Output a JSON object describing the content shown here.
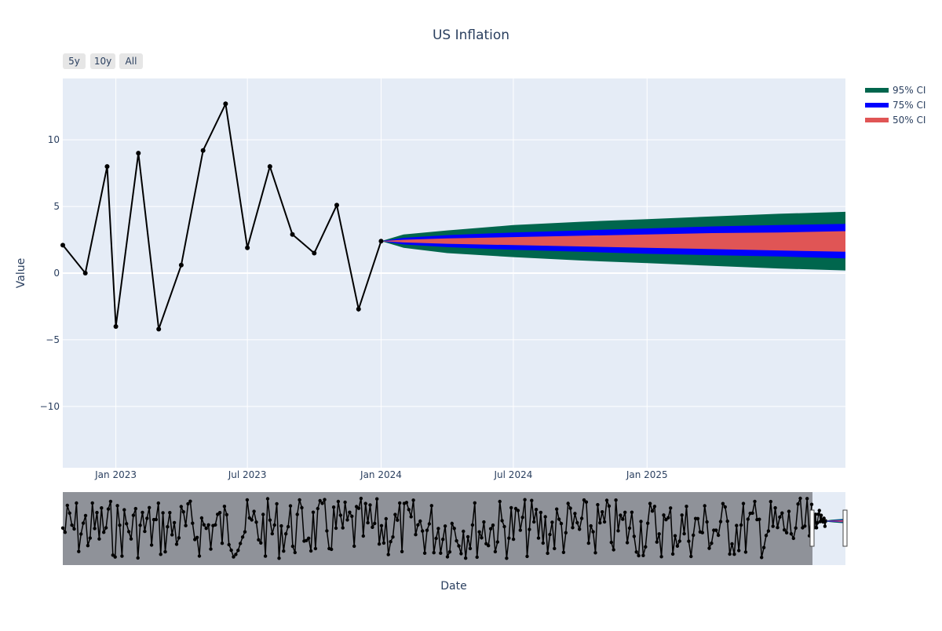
{
  "chart_data": {
    "type": "line",
    "title": "US Inflation",
    "xlabel": "Date",
    "ylabel": "Value",
    "range_selector": [
      "5y",
      "10y",
      "All"
    ],
    "x_ticks": [
      "Jan 2023",
      "Jul 2023",
      "Jan 2024",
      "Jul 2024",
      "Jan 2025"
    ],
    "x_tick_dates": [
      "2023-01-01",
      "2023-07-01",
      "2024-01-01",
      "2024-07-01",
      "2025-01-01"
    ],
    "xlim": [
      "2022-10-20",
      "2025-10-01"
    ],
    "y_ticks": [
      -10,
      -5,
      0,
      5,
      10
    ],
    "y_tick_labels": [
      "−10",
      "−5",
      "0",
      "5",
      "10"
    ],
    "ylim": [
      -14.6,
      14.6
    ],
    "grid": true,
    "legend_position": "top-right",
    "colors": {
      "plot_bg": "#e5ecf6",
      "actual": "#000000",
      "ci95": "#00664d",
      "ci75": "#0000ff",
      "ci50": "#e05555",
      "range_mask": "#8a8d94",
      "text": "#2a3f5f"
    },
    "actual": {
      "dates": [
        "2022-10-20",
        "2022-11-20",
        "2022-12-20",
        "2023-01-01",
        "2023-02-01",
        "2023-03-01",
        "2023-04-01",
        "2023-05-01",
        "2023-06-01",
        "2023-07-01",
        "2023-08-01",
        "2023-09-01",
        "2023-10-01",
        "2023-11-01",
        "2023-12-01",
        "2024-01-01"
      ],
      "values": [
        2.1,
        0.0,
        8.0,
        -4.0,
        9.0,
        -4.2,
        0.6,
        9.2,
        12.7,
        1.9,
        8.0,
        2.9,
        1.5,
        5.1,
        -2.7,
        2.4
      ]
    },
    "forecast": {
      "dates": [
        "2024-01-01",
        "2024-02-01",
        "2024-04-01",
        "2024-07-01",
        "2024-10-01",
        "2025-01-01",
        "2025-04-01",
        "2025-07-01",
        "2025-10-01"
      ],
      "ci95_upper": [
        2.4,
        2.9,
        3.2,
        3.6,
        3.85,
        4.05,
        4.25,
        4.45,
        4.6
      ],
      "ci95_lower": [
        2.4,
        1.9,
        1.5,
        1.2,
        0.95,
        0.75,
        0.55,
        0.35,
        0.2
      ],
      "ci75_upper": [
        2.4,
        2.65,
        2.85,
        3.05,
        3.2,
        3.35,
        3.5,
        3.6,
        3.7
      ],
      "ci75_lower": [
        2.4,
        2.15,
        1.95,
        1.75,
        1.6,
        1.45,
        1.35,
        1.25,
        1.1
      ],
      "ci50_upper": [
        2.4,
        2.5,
        2.6,
        2.7,
        2.8,
        2.9,
        3.0,
        3.05,
        3.15
      ],
      "ci50_lower": [
        2.4,
        2.3,
        2.2,
        2.1,
        2.0,
        1.9,
        1.8,
        1.7,
        1.6
      ]
    },
    "legend": [
      "95% CI",
      "75% CI",
      "50% CI"
    ]
  }
}
